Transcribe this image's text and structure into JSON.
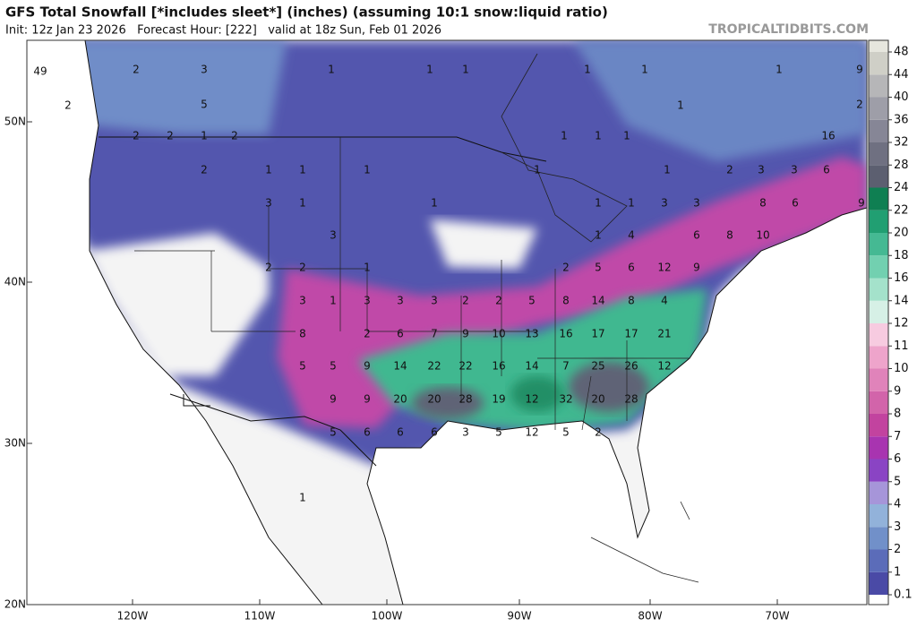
{
  "header": {
    "title": "GFS Total Snowfall [*includes sleet*] (inches) (assuming 10:1 snow:liquid ratio)",
    "subtitle": "Init: 12z Jan 23 2026   Forecast Hour: [222]   valid at 18z Sun, Feb 01 2026",
    "source": "TROPICALTIDBITS.COM"
  },
  "map": {
    "lat_labels": [
      "50N",
      "40N",
      "30N",
      "20N"
    ],
    "lon_labels": [
      "120W",
      "110W",
      "100W",
      "90W",
      "80W",
      "70W"
    ],
    "values": [
      49,
      2,
      3,
      5,
      2,
      1,
      1,
      1,
      1,
      1,
      1,
      1,
      9,
      2,
      2,
      2,
      1,
      2,
      16,
      1,
      1,
      1,
      2,
      1,
      1,
      1,
      1,
      1,
      2,
      3,
      3,
      6,
      3,
      1,
      1,
      1,
      1,
      3,
      3,
      8,
      6,
      9,
      3,
      1,
      4,
      6,
      8,
      10,
      2,
      2,
      1,
      2,
      5,
      6,
      12,
      9,
      3,
      1,
      3,
      3,
      3,
      2,
      2,
      5,
      8,
      14,
      8,
      4,
      8,
      2,
      6,
      7,
      9,
      10,
      13,
      16,
      17,
      17,
      21,
      5,
      5,
      9,
      14,
      22,
      22,
      16,
      14,
      7,
      25,
      26,
      12,
      9,
      9,
      20,
      20,
      28,
      19,
      12,
      32,
      20,
      28,
      5,
      6,
      6,
      6,
      3,
      5,
      12,
      5,
      2,
      1
    ]
  },
  "colorbar": {
    "ticks": [
      0.1,
      1,
      2,
      3,
      4,
      5,
      6,
      7,
      8,
      9,
      10,
      11,
      12,
      14,
      16,
      18,
      20,
      22,
      24,
      28,
      32,
      36,
      40,
      44,
      48
    ],
    "colors": [
      "#4a4aa6",
      "#5b6cb9",
      "#7190c9",
      "#92b2da",
      "#a695d9",
      "#8a44c4",
      "#a834b0",
      "#c2439f",
      "#d264aa",
      "#e083ba",
      "#eea4cb",
      "#f7cbe0",
      "#d6f0e6",
      "#a4e2cb",
      "#72d0b0",
      "#45b993",
      "#219f72",
      "#0f7f52",
      "#5c5f70",
      "#6f7081",
      "#868696",
      "#9e9ea8",
      "#b6b6b8",
      "#cfcfc7",
      "#e6e6de"
    ]
  }
}
